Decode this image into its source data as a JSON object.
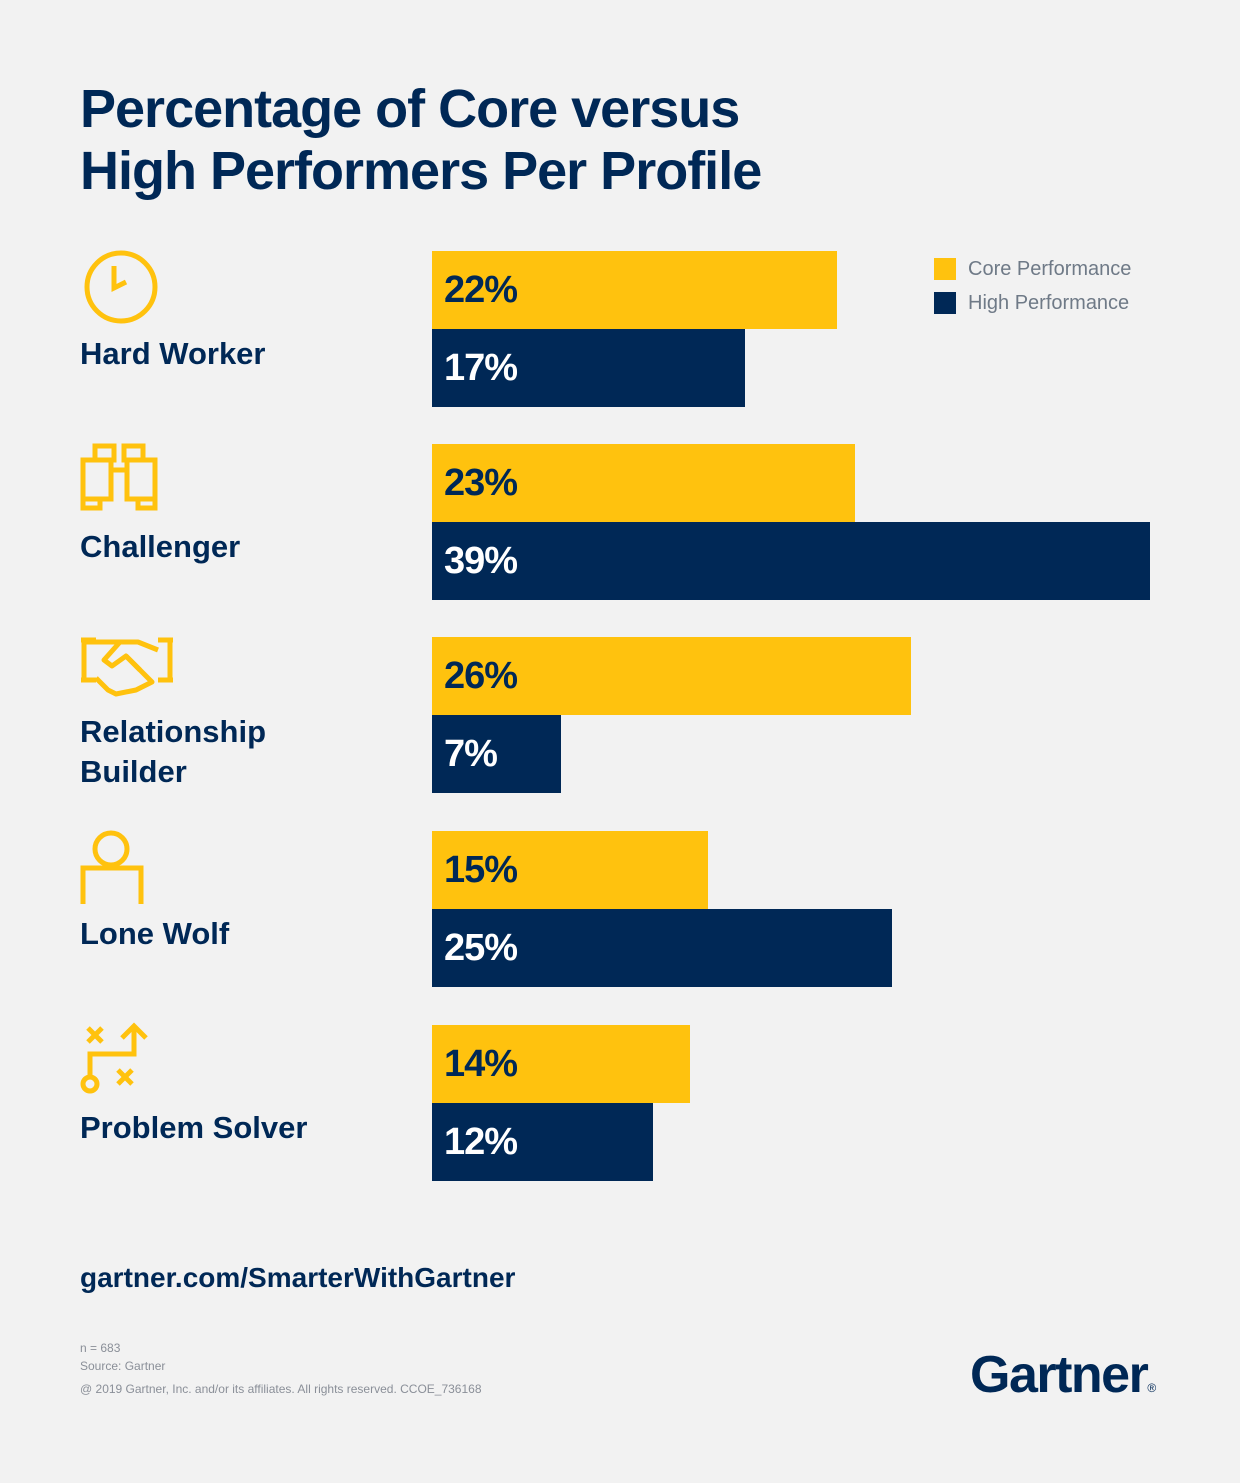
{
  "title_line1": "Percentage of Core versus",
  "title_line2": "High Performers Per Profile",
  "colors": {
    "core": "#ffc20e",
    "high": "#002856",
    "core_text": "#002856",
    "high_text": "#ffffff",
    "background": "#f2f2f2"
  },
  "legend": [
    {
      "label": "Core Performance",
      "color": "#ffc20e"
    },
    {
      "label": "High Performance",
      "color": "#002856"
    }
  ],
  "profiles": [
    {
      "name": "Hard Worker",
      "icon": "clock-icon"
    },
    {
      "name": "Challenger",
      "icon": "binoculars-icon"
    },
    {
      "name": "Relationship\nBuilder",
      "icon": "handshake-icon"
    },
    {
      "name": "Lone Wolf",
      "icon": "person-icon"
    },
    {
      "name": "Problem Solver",
      "icon": "strategy-path-icon"
    }
  ],
  "chart_data": {
    "type": "bar",
    "orientation": "horizontal",
    "title": "Percentage of Core versus High Performers Per Profile",
    "categories": [
      "Hard Worker",
      "Challenger",
      "Relationship Builder",
      "Lone Wolf",
      "Problem Solver"
    ],
    "series": [
      {
        "name": "Core Performance",
        "values": [
          22,
          23,
          26,
          15,
          14
        ],
        "labels": [
          "22%",
          "23%",
          "26%",
          "15%",
          "14%"
        ]
      },
      {
        "name": "High Performance",
        "values": [
          17,
          39,
          7,
          25,
          12
        ],
        "labels": [
          "17%",
          "39%",
          "7%",
          "25%",
          "12%"
        ]
      }
    ],
    "unit": "%",
    "xlabel": "",
    "ylabel": "",
    "xlim": [
      0,
      39
    ],
    "grid": false,
    "legend_position": "top-right"
  },
  "footer": {
    "url": "gartner.com/SmarterWithGartner",
    "n": "n = 683",
    "source": "Source: Gartner",
    "copyright": "@ 2019 Gartner, Inc. and/or its affiliates. All rights reserved. CCOE_736168",
    "logo": "Gartner",
    "logo_mark": "®"
  }
}
